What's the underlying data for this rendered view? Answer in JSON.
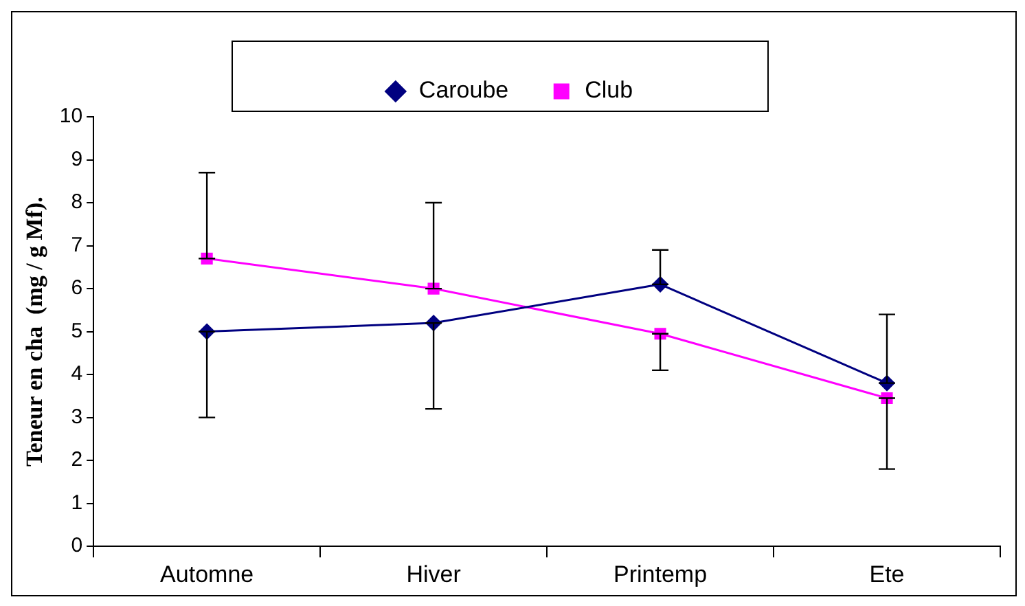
{
  "chart_data": {
    "type": "line",
    "ylabel": "Teneur en cha  (mg / g Mf).",
    "categories": [
      "Automne",
      "Hiver",
      "Printemp",
      "Ete"
    ],
    "series": [
      {
        "name": "Caroube",
        "color": "#000080",
        "marker": "diamond",
        "values": [
          5.0,
          5.2,
          6.1,
          3.8
        ],
        "errors": [
          [
            3.0,
            5.0
          ],
          [
            3.2,
            5.2
          ],
          [
            6.1,
            6.9
          ],
          [
            3.8,
            5.4
          ]
        ]
      },
      {
        "name": "Club",
        "color": "#ff00ff",
        "marker": "square",
        "values": [
          6.7,
          6.0,
          4.95,
          3.45
        ],
        "errors": [
          [
            6.7,
            8.7
          ],
          [
            6.0,
            8.0
          ],
          [
            4.1,
            4.95
          ],
          [
            1.8,
            3.45
          ]
        ]
      }
    ],
    "ylim": [
      0,
      10
    ],
    "yticks": [
      0,
      1,
      2,
      3,
      4,
      5,
      6,
      7,
      8,
      9,
      10
    ],
    "grid": false,
    "legend": "top"
  }
}
